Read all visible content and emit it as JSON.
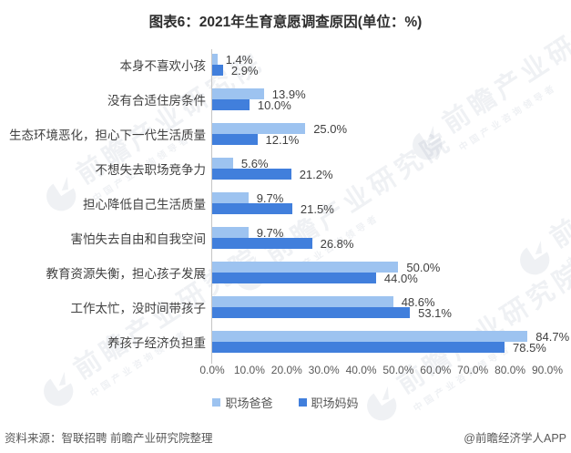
{
  "title": "图表6：2021年生育意愿调查原因(单位：%)",
  "chart_data": {
    "type": "bar",
    "orientation": "horizontal",
    "title": "图表6：2021年生育意愿调查原因(单位：%)",
    "categories": [
      "本身不喜欢小孩",
      "没有合适住房条件",
      "生态环境恶化，担心下一代生活质量",
      "不想失去职场竞争力",
      "担心降低自己生活质量",
      "害怕失去自由和自我空间",
      "教育资源失衡，担心孩子发展",
      "工作太忙，没时间带孩子",
      "养孩子经济负担重"
    ],
    "series": [
      {
        "name": "职场爸爸",
        "color": "#9DC3F0",
        "values": [
          1.4,
          13.9,
          25.0,
          5.6,
          9.7,
          9.7,
          50.0,
          48.6,
          84.7
        ]
      },
      {
        "name": "职场妈妈",
        "color": "#417FDC",
        "values": [
          2.9,
          10.0,
          12.1,
          21.2,
          21.5,
          26.8,
          44.0,
          53.1,
          78.5
        ]
      }
    ],
    "xlim": [
      0,
      90
    ],
    "x_ticks": [
      "0.0%",
      "10.0%",
      "20.0%",
      "30.0%",
      "40.0%",
      "50.0%",
      "60.0%",
      "70.0%",
      "80.0%",
      "90.0%"
    ],
    "value_suffix": "%",
    "grid": false,
    "legend_position": "bottom"
  },
  "footer": {
    "source": "资料来源：智联招聘 前瞻产业研究院整理",
    "credit": "@前瞻经济学人APP"
  },
  "watermark": {
    "text": "前瞻产业研究院",
    "subtext": "中国产业咨询领导者"
  }
}
